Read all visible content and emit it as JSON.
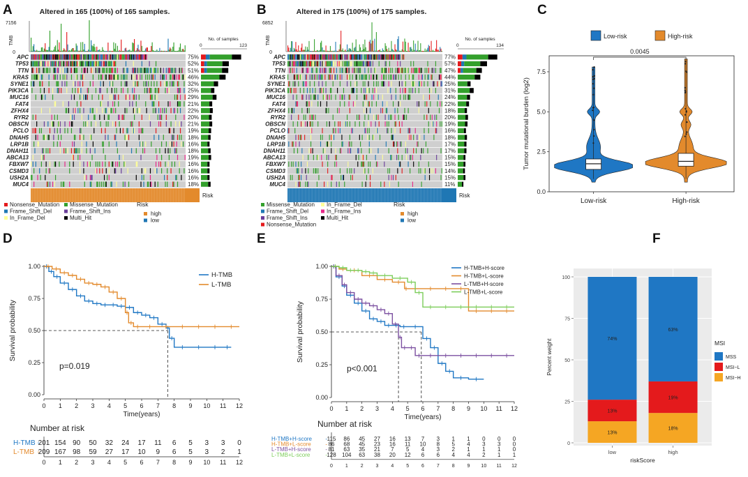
{
  "chart_data": [
    {
      "panel": "A",
      "type": "oncoplot",
      "title": "Altered in 165 (100%) of 165 samples.",
      "tmb_axis_label": "TMB",
      "tmb_max": "7156",
      "tmb_min": "0",
      "bar_header": "No. of samples",
      "bar_axis_min": "0",
      "bar_axis_max": "123",
      "genes": [
        "APC",
        "TP53",
        "TTN",
        "KRAS",
        "SYNE1",
        "PIK3CA",
        "MUC16",
        "FAT4",
        "ZFHX4",
        "RYR2",
        "OBSCN",
        "PCLO",
        "DNAH5",
        "LRP1B",
        "DNAH11",
        "ABCA13",
        "FBXW7",
        "CSMD3",
        "USH2A",
        "MUC4"
      ],
      "percents": [
        "75%",
        "52%",
        "51%",
        "46%",
        "32%",
        "25%",
        "29%",
        "21%",
        "22%",
        "20%",
        "21%",
        "19%",
        "18%",
        "16%",
        "18%",
        "19%",
        "16%",
        "16%",
        "16%",
        "18%"
      ],
      "risk_bar_label": "Risk",
      "risk_color": "#E38A2C",
      "legend_title": "Risk",
      "legend_items": [
        {
          "label": "Nonsense_Mutation",
          "color": "#E41A1C"
        },
        {
          "label": "Missense_Mutation",
          "color": "#33A02C"
        },
        {
          "label": "Frame_Shift_Del",
          "color": "#1F78B4"
        },
        {
          "label": "Frame_Shift_Ins",
          "color": "#6A3D9A"
        },
        {
          "label": "In_Frame_Del",
          "color": "#FFFF99"
        },
        {
          "label": "Multi_Hit",
          "color": "#000000"
        }
      ],
      "risk_legend": [
        {
          "label": "high",
          "color": "#E38A2C"
        },
        {
          "label": "low",
          "color": "#1F77B4"
        }
      ]
    },
    {
      "panel": "B",
      "type": "oncoplot",
      "title": "Altered in 175 (100%) of 175 samples.",
      "tmb_axis_label": "TMB",
      "tmb_max": "6852",
      "tmb_min": "0",
      "bar_header": "No. of samples",
      "bar_axis_min": "0",
      "bar_axis_max": "134",
      "genes": [
        "APC",
        "TP53",
        "TTN",
        "KRAS",
        "SYNE1",
        "PIK3CA",
        "MUC16",
        "FAT4",
        "ZFHX4",
        "RYR2",
        "OBSCN",
        "PCLO",
        "DNAH5",
        "LRP1B",
        "DNAH11",
        "ABCA13",
        "FBXW7",
        "CSMD3",
        "USH2A",
        "MUC4"
      ],
      "percents": [
        "77%",
        "57%",
        "47%",
        "44%",
        "25%",
        "31%",
        "24%",
        "22%",
        "18%",
        "20%",
        "19%",
        "16%",
        "18%",
        "17%",
        "17%",
        "15%",
        "15%",
        "14%",
        "15%",
        "11%"
      ],
      "risk_bar_label": "Risk",
      "risk_color": "#1F77B4",
      "legend_title": "Risk",
      "legend_items": [
        {
          "label": "Missense_Mutation",
          "color": "#33A02C"
        },
        {
          "label": "In_Frame_Del",
          "color": "#FFFF99"
        },
        {
          "label": "Frame_Shift_Del",
          "color": "#1F78B4"
        },
        {
          "label": "In_Frame_Ins",
          "color": "#E7298A"
        },
        {
          "label": "Frame_Shift_Ins",
          "color": "#6A3D9A"
        },
        {
          "label": "Multi_Hit",
          "color": "#000000"
        },
        {
          "label": "Nonsense_Mutation",
          "color": "#E41A1C"
        }
      ],
      "risk_legend": [
        {
          "label": "high",
          "color": "#E38A2C"
        },
        {
          "label": "low",
          "color": "#1F77B4"
        }
      ]
    },
    {
      "panel": "C",
      "type": "violin",
      "legend": [
        {
          "label": "Low-risk",
          "color": "#1F77C4"
        },
        {
          "label": "High-risk",
          "color": "#E38A2C"
        }
      ],
      "ylabel": "Tumor mutational burden (log2)",
      "ylim": [
        0,
        8.5
      ],
      "yticks": [
        0,
        2.5,
        5,
        7.5
      ],
      "ytick_labels": [
        "0.0",
        "2.5",
        "5.0",
        "7.5"
      ],
      "categories": [
        "Low-risk",
        "High-risk"
      ],
      "pvalue": "0.0045",
      "boxes": [
        {
          "q1": 1.4,
          "median": 1.75,
          "q3": 2.05,
          "max": 7.8
        },
        {
          "q1": 1.6,
          "median": 1.9,
          "q3": 2.4,
          "max": 8.3
        }
      ]
    },
    {
      "panel": "D",
      "type": "line",
      "subtype": "kaplan-meier",
      "xlabel": "Time(years)",
      "ylabel": "Survival probability",
      "xlim": [
        0,
        12
      ],
      "ylim": [
        0,
        1
      ],
      "yticks": [
        "0.00",
        "0.25",
        "0.50",
        "0.75",
        "1.00"
      ],
      "xticks": [
        "0",
        "1",
        "2",
        "3",
        "4",
        "5",
        "6",
        "7",
        "8",
        "9",
        "10",
        "11",
        "12"
      ],
      "pvalue_text": "p=0.019",
      "series": [
        {
          "name": "H-TMB",
          "color": "#1F77C4",
          "x": [
            0,
            0.3,
            0.6,
            1,
            1.5,
            2,
            2.5,
            3,
            3.5,
            4,
            4.5,
            5,
            5.5,
            6,
            6.5,
            7,
            7.5,
            7.7,
            8,
            9,
            10,
            11,
            11.5
          ],
          "y": [
            1,
            0.96,
            0.92,
            0.87,
            0.82,
            0.77,
            0.73,
            0.71,
            0.7,
            0.7,
            0.69,
            0.68,
            0.64,
            0.62,
            0.6,
            0.55,
            0.52,
            0.44,
            0.37,
            0.37,
            0.37,
            0.37,
            0.37
          ]
        },
        {
          "name": "L-TMB",
          "color": "#E38A2C",
          "x": [
            0,
            0.5,
            1,
            1.5,
            2,
            2.5,
            3,
            3.5,
            4,
            4.5,
            5,
            5.2,
            5.5,
            6,
            7,
            8,
            9,
            10,
            11,
            12
          ],
          "y": [
            1,
            0.98,
            0.95,
            0.93,
            0.9,
            0.87,
            0.86,
            0.84,
            0.8,
            0.75,
            0.64,
            0.56,
            0.53,
            0.53,
            0.53,
            0.53,
            0.53,
            0.53,
            0.53,
            0.53
          ]
        }
      ],
      "median_lines": [
        {
          "x": 7.6,
          "y": 0.5
        }
      ],
      "risk_table_title": "Number at risk",
      "risk_table": [
        {
          "name": "H-TMB",
          "color": "#1F77C4",
          "values": [
            "201",
            "154",
            "90",
            "50",
            "32",
            "24",
            "17",
            "11",
            "6",
            "5",
            "3",
            "3",
            "0"
          ]
        },
        {
          "name": "L-TMB",
          "color": "#E38A2C",
          "values": [
            "209",
            "167",
            "98",
            "59",
            "27",
            "17",
            "10",
            "9",
            "6",
            "5",
            "3",
            "2",
            "1"
          ]
        }
      ]
    },
    {
      "panel": "E",
      "type": "line",
      "subtype": "kaplan-meier",
      "xlabel": "Time(years)",
      "ylabel": "Survival probability",
      "xlim": [
        0,
        12
      ],
      "ylim": [
        0,
        1
      ],
      "yticks": [
        "0.00",
        "0.25",
        "0.50",
        "0.75",
        "1.00"
      ],
      "xticks": [
        "0",
        "1",
        "2",
        "3",
        "4",
        "5",
        "6",
        "7",
        "8",
        "9",
        "10",
        "11",
        "12"
      ],
      "pvalue_text": "p<0.001",
      "series": [
        {
          "name": "H-TMB+H-score",
          "color": "#1F77C4",
          "x": [
            0,
            0.3,
            0.7,
            1,
            1.5,
            2,
            2.5,
            3,
            3.5,
            4,
            4.5,
            5,
            6,
            6.5,
            7,
            7.5,
            8,
            9,
            10
          ],
          "y": [
            1,
            0.92,
            0.85,
            0.78,
            0.72,
            0.66,
            0.6,
            0.58,
            0.55,
            0.55,
            0.54,
            0.54,
            0.45,
            0.38,
            0.26,
            0.2,
            0.15,
            0.14,
            0.14
          ]
        },
        {
          "name": "H-TMB+L-score",
          "color": "#E38A2C",
          "x": [
            0,
            0.5,
            1,
            2,
            3,
            4,
            4.8,
            5,
            6,
            7,
            8,
            9,
            10,
            11,
            12
          ],
          "y": [
            1,
            0.98,
            0.97,
            0.93,
            0.9,
            0.88,
            0.83,
            0.83,
            0.83,
            0.83,
            0.83,
            0.66,
            0.66,
            0.66,
            0.66
          ]
        },
        {
          "name": "L-TMB+H-score",
          "color": "#7B4FA0",
          "x": [
            0,
            0.3,
            0.7,
            1,
            1.5,
            2,
            2.5,
            3,
            3.5,
            4,
            4.4,
            4.6,
            5,
            5.5,
            6,
            7,
            8,
            9,
            10,
            11,
            12
          ],
          "y": [
            1,
            0.93,
            0.86,
            0.8,
            0.75,
            0.72,
            0.7,
            0.67,
            0.64,
            0.56,
            0.46,
            0.38,
            0.38,
            0.32,
            0.32,
            0.32,
            0.32,
            0.32,
            0.32,
            0.32,
            0.32
          ]
        },
        {
          "name": "L-TMB+L-score",
          "color": "#7CCD5A",
          "x": [
            0,
            0.5,
            1,
            1.5,
            2,
            2.5,
            3,
            4,
            5,
            5.5,
            6,
            7,
            8,
            9,
            10,
            11,
            12
          ],
          "y": [
            1,
            0.99,
            0.97,
            0.97,
            0.96,
            0.95,
            0.93,
            0.91,
            0.88,
            0.8,
            0.69,
            0.69,
            0.69,
            0.69,
            0.69,
            0.69,
            0.69
          ]
        }
      ],
      "median_lines": [
        {
          "x": 4.4,
          "y": 0.5
        },
        {
          "x": 5.9,
          "y": 0.5
        }
      ],
      "risk_table_title": "Number at risk",
      "risk_table": [
        {
          "name": "H-TMB+H-score",
          "color": "#1F77C4",
          "values": [
            "115",
            "86",
            "45",
            "27",
            "16",
            "13",
            "7",
            "3",
            "1",
            "1",
            "0",
            "0",
            "0"
          ]
        },
        {
          "name": "H-TMB+L-score",
          "color": "#E38A2C",
          "values": [
            "86",
            "68",
            "45",
            "23",
            "16",
            "11",
            "10",
            "8",
            "5",
            "4",
            "3",
            "3",
            "0"
          ]
        },
        {
          "name": "L-TMB+H-score",
          "color": "#7B4FA0",
          "values": [
            "81",
            "63",
            "35",
            "21",
            "7",
            "5",
            "4",
            "3",
            "2",
            "1",
            "1",
            "1",
            "0"
          ]
        },
        {
          "name": "L-TMB+L-score",
          "color": "#7CCD5A",
          "values": [
            "128",
            "104",
            "63",
            "38",
            "20",
            "12",
            "6",
            "6",
            "4",
            "4",
            "2",
            "1",
            "1"
          ]
        }
      ]
    },
    {
      "panel": "F",
      "type": "bar",
      "subtype": "stacked-percent",
      "xlabel": "riskScore",
      "ylabel": "Percent weight",
      "categories": [
        "low",
        "high"
      ],
      "yticks": [
        "0",
        "25",
        "50",
        "75",
        "100"
      ],
      "legend_title": "MSI",
      "series": [
        {
          "name": "MSI−H",
          "color": "#F5A623",
          "values": [
            13,
            18
          ],
          "labels": [
            "13%",
            "18%"
          ]
        },
        {
          "name": "MSI−L",
          "color": "#E41A1C",
          "values": [
            13,
            19
          ],
          "labels": [
            "13%",
            "19%"
          ]
        },
        {
          "name": "MSS",
          "color": "#1F77C4",
          "values": [
            74,
            63
          ],
          "labels": [
            "74%",
            "63%"
          ]
        }
      ],
      "legend_order": [
        "MSS",
        "MSI−L",
        "MSI−H"
      ]
    }
  ],
  "panel_letters": [
    "A",
    "B",
    "C",
    "D",
    "E",
    "F"
  ]
}
